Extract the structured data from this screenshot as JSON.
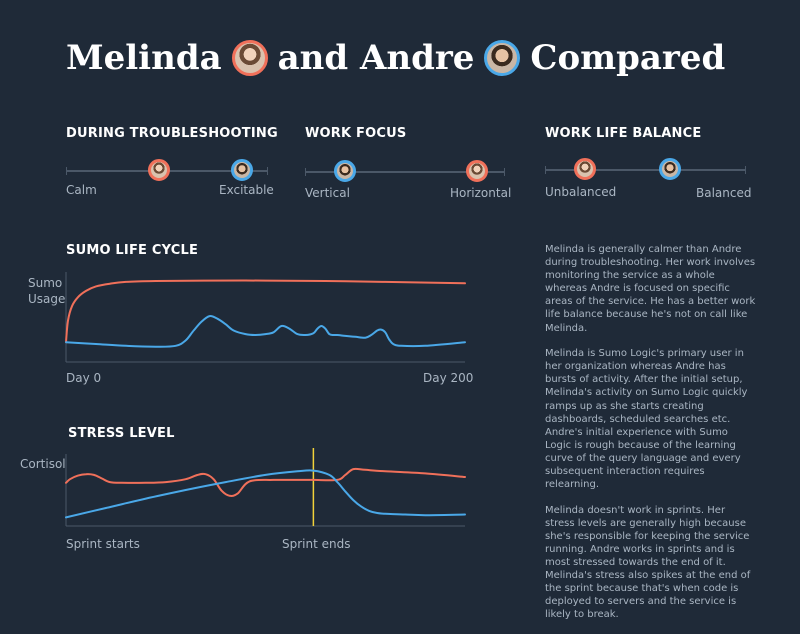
{
  "title": {
    "part1": "Melinda",
    "part2": "and Andre",
    "part3": "Compared"
  },
  "colors": {
    "melinda": "#f0705a",
    "andre": "#4aa8e8",
    "sprint_end": "#f2d23a"
  },
  "scales": [
    {
      "title": "DURING TROUBLESHOOTING",
      "left": "Calm",
      "right": "Excitable",
      "melinda": 0.46,
      "andre": 0.87
    },
    {
      "title": "WORK FOCUS",
      "left": "Vertical",
      "right": "Horizontal",
      "andre": 0.2,
      "melinda": 0.86
    },
    {
      "title": "WORK LIFE BALANCE",
      "left": "Unbalanced",
      "right": "Balanced",
      "melinda": 0.2,
      "andre": 0.62
    }
  ],
  "chart_data": [
    {
      "type": "line",
      "title": "SUMO LIFE CYCLE",
      "ylabel": "Sumo Usage",
      "xlabel_start": "Day 0",
      "xlabel_end": "Day 200",
      "xlim": [
        0,
        200
      ],
      "ylim": [
        0,
        100
      ],
      "series": [
        {
          "color": "#f0705a",
          "x": [
            0,
            1,
            3,
            6,
            10,
            15,
            22,
            30,
            45,
            70,
            100,
            130,
            160,
            185,
            200
          ],
          "y": [
            22,
            46,
            62,
            72,
            79,
            84,
            87,
            89,
            90,
            90.5,
            90.5,
            90,
            89,
            88,
            87.5
          ]
        },
        {
          "color": "#4aa8e8",
          "x": [
            0,
            15,
            30,
            45,
            55,
            60,
            64,
            68,
            72,
            76,
            80,
            84,
            90,
            95,
            100,
            104,
            108,
            112,
            116,
            120,
            124,
            126,
            128,
            130,
            132,
            134,
            136,
            140,
            145,
            150,
            153,
            156,
            158,
            160,
            162,
            164,
            168,
            180,
            200
          ],
          "y": [
            22,
            20,
            18,
            17,
            18,
            24,
            35,
            45,
            51,
            48,
            42,
            35,
            31,
            30,
            31,
            33,
            40,
            37,
            31,
            30,
            32,
            37,
            40,
            37,
            31,
            30,
            30,
            29,
            28,
            27,
            30,
            35,
            36,
            33,
            25,
            20,
            18,
            18,
            22
          ]
        }
      ]
    },
    {
      "type": "line",
      "title": "STRESS LEVEL",
      "ylabel": "Cortisol",
      "xlabel_start": "Sprint starts",
      "xlabel_mid": "Sprint ends",
      "xlim": [
        0,
        100
      ],
      "ylim": [
        0,
        100
      ],
      "sprint_end_x": 62,
      "series": [
        {
          "color": "#f0705a",
          "x": [
            0,
            1,
            3,
            5,
            7,
            9,
            11,
            14,
            20,
            25,
            30,
            33,
            35,
            37,
            39,
            41,
            43,
            46,
            52,
            58,
            62,
            68,
            70,
            72,
            75,
            80,
            90,
            100
          ],
          "y": [
            60,
            65,
            70,
            72,
            71,
            66,
            61,
            60,
            60,
            61,
            65,
            71,
            72,
            65,
            49,
            42,
            45,
            62,
            64,
            64,
            64,
            64,
            71,
            79,
            78,
            76,
            73,
            68
          ]
        },
        {
          "color": "#4aa8e8",
          "x": [
            0,
            10,
            20,
            30,
            40,
            50,
            58,
            62,
            66,
            68,
            70,
            72,
            74,
            76,
            78,
            80,
            85,
            90,
            100
          ],
          "y": [
            12,
            25,
            38,
            50,
            61,
            71,
            76,
            77,
            71,
            61,
            48,
            36,
            27,
            21,
            18,
            17,
            16,
            15,
            16
          ]
        }
      ]
    }
  ],
  "description": [
    "Melinda is generally calmer than Andre during troubleshooting. Her work involves monitoring the service as a whole whereas Andre is focused on specific areas of the service. He has a better work life balance because he's not on call like Melinda.",
    "Melinda is Sumo Logic's primary user in her organization whereas Andre has bursts of activity. After the initial setup, Melinda's activity on Sumo Logic quickly ramps up as she starts creating dashboards, scheduled searches etc. Andre's initial experience with Sumo Logic is rough because of the learning curve of the query language and every subsequent interaction requires relearning.",
    "Melinda doesn't work in sprints. Her stress levels are generally high because she's responsible for keeping the service running. Andre works in sprints and is most stressed towards the end of it. Melinda's stress also spikes at the end of the sprint because that's when code is deployed to servers and the service is likely to break."
  ]
}
